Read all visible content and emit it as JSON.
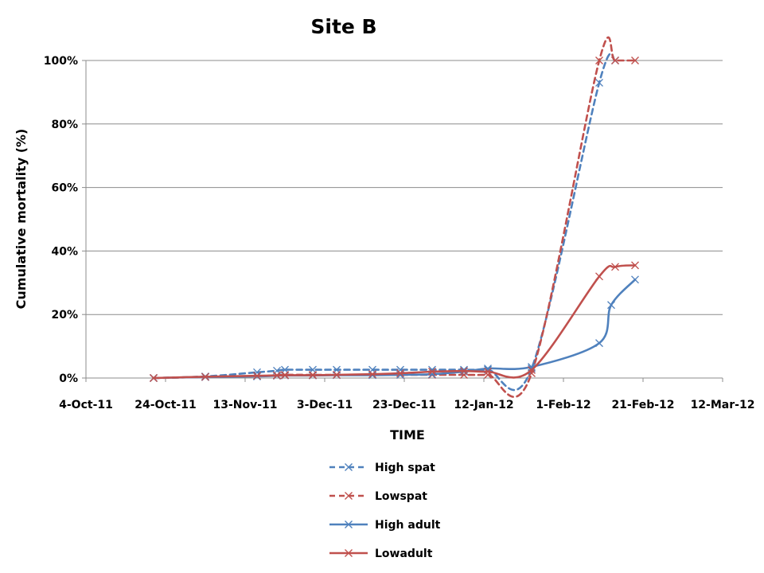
{
  "chart_data": {
    "type": "line",
    "title": "Site B",
    "xlabel": "TIME",
    "ylabel": "Cumulative mortality (%)",
    "x_ticks": [
      "2011-10-04",
      "2011-10-24",
      "2011-11-13",
      "2011-12-03",
      "2011-12-23",
      "2012-01-12",
      "2012-02-01",
      "2012-02-21",
      "2012-03-12"
    ],
    "x_tick_labels": [
      "4-Oct-11",
      "24-Oct-11",
      "13-Nov-11",
      "3-Dec-11",
      "23-Dec-11",
      "12-Jan-12",
      "1-Feb-12",
      "21-Feb-12",
      "12-Mar-12"
    ],
    "xlim": [
      "2011-10-04",
      "2012-03-12"
    ],
    "ylim": [
      0,
      100
    ],
    "y_ticks": [
      0,
      20,
      40,
      60,
      80,
      100
    ],
    "y_tick_labels": [
      "0%",
      "20%",
      "40%",
      "60%",
      "80%",
      "100%"
    ],
    "grid": "horizontal",
    "legend_position": "bottom",
    "series": [
      {
        "name": "High spat",
        "color": "#4f81bd",
        "dash": true,
        "points": [
          {
            "x": "2011-10-21",
            "y": 0
          },
          {
            "x": "2011-11-03",
            "y": 0.5
          },
          {
            "x": "2011-11-16",
            "y": 1.8
          },
          {
            "x": "2011-11-21",
            "y": 2.3
          },
          {
            "x": "2011-11-23",
            "y": 2.6
          },
          {
            "x": "2011-11-30",
            "y": 2.6
          },
          {
            "x": "2011-12-06",
            "y": 2.6
          },
          {
            "x": "2011-12-15",
            "y": 2.6
          },
          {
            "x": "2011-12-22",
            "y": 2.6
          },
          {
            "x": "2011-12-30",
            "y": 2.6
          },
          {
            "x": "2012-01-07",
            "y": 2.6
          },
          {
            "x": "2012-01-13",
            "y": 2.6
          },
          {
            "x": "2012-01-24",
            "y": 3.0
          },
          {
            "x": "2012-02-10",
            "y": 93
          },
          {
            "x": "2012-02-14",
            "y": 100
          }
        ]
      },
      {
        "name": "Lowspat",
        "color": "#c0504d",
        "dash": true,
        "points": [
          {
            "x": "2011-10-21",
            "y": 0
          },
          {
            "x": "2011-11-03",
            "y": 0.3
          },
          {
            "x": "2011-11-16",
            "y": 0.6
          },
          {
            "x": "2011-11-21",
            "y": 0.9
          },
          {
            "x": "2011-11-23",
            "y": 1.0
          },
          {
            "x": "2011-11-30",
            "y": 1.0
          },
          {
            "x": "2011-12-06",
            "y": 1.0
          },
          {
            "x": "2011-12-15",
            "y": 1.0
          },
          {
            "x": "2011-12-22",
            "y": 1.0
          },
          {
            "x": "2011-12-30",
            "y": 1.0
          },
          {
            "x": "2012-01-07",
            "y": 1.0
          },
          {
            "x": "2012-01-13",
            "y": 1.0
          },
          {
            "x": "2012-01-24",
            "y": 1.5
          },
          {
            "x": "2012-02-10",
            "y": 100
          },
          {
            "x": "2012-02-14",
            "y": 100
          },
          {
            "x": "2012-02-19",
            "y": 100
          }
        ]
      },
      {
        "name": "High adult",
        "color": "#4f81bd",
        "dash": false,
        "points": [
          {
            "x": "2011-10-21",
            "y": 0
          },
          {
            "x": "2011-11-03",
            "y": 0.3
          },
          {
            "x": "2011-11-16",
            "y": 0.5
          },
          {
            "x": "2011-11-21",
            "y": 0.7
          },
          {
            "x": "2011-11-23",
            "y": 0.8
          },
          {
            "x": "2011-11-30",
            "y": 0.8
          },
          {
            "x": "2011-12-06",
            "y": 0.9
          },
          {
            "x": "2011-12-15",
            "y": 0.9
          },
          {
            "x": "2011-12-22",
            "y": 1.0
          },
          {
            "x": "2011-12-30",
            "y": 1.2
          },
          {
            "x": "2012-01-07",
            "y": 2.0
          },
          {
            "x": "2012-01-13",
            "y": 3.0
          },
          {
            "x": "2012-01-24",
            "y": 3.5
          },
          {
            "x": "2012-02-10",
            "y": 11
          },
          {
            "x": "2012-02-13",
            "y": 23
          },
          {
            "x": "2012-02-19",
            "y": 31
          }
        ]
      },
      {
        "name": "Lowadult",
        "color": "#c0504d",
        "dash": false,
        "points": [
          {
            "x": "2011-10-21",
            "y": 0
          },
          {
            "x": "2011-11-03",
            "y": 0.4
          },
          {
            "x": "2011-11-16",
            "y": 0.7
          },
          {
            "x": "2011-11-21",
            "y": 0.8
          },
          {
            "x": "2011-11-23",
            "y": 0.9
          },
          {
            "x": "2011-11-30",
            "y": 0.9
          },
          {
            "x": "2011-12-06",
            "y": 1.0
          },
          {
            "x": "2011-12-15",
            "y": 1.2
          },
          {
            "x": "2011-12-22",
            "y": 1.5
          },
          {
            "x": "2011-12-30",
            "y": 2.0
          },
          {
            "x": "2012-01-07",
            "y": 2.2
          },
          {
            "x": "2012-01-13",
            "y": 2.0
          },
          {
            "x": "2012-01-24",
            "y": 2.5
          },
          {
            "x": "2012-02-10",
            "y": 32
          },
          {
            "x": "2012-02-14",
            "y": 35
          },
          {
            "x": "2012-02-19",
            "y": 35.5
          }
        ]
      }
    ]
  }
}
